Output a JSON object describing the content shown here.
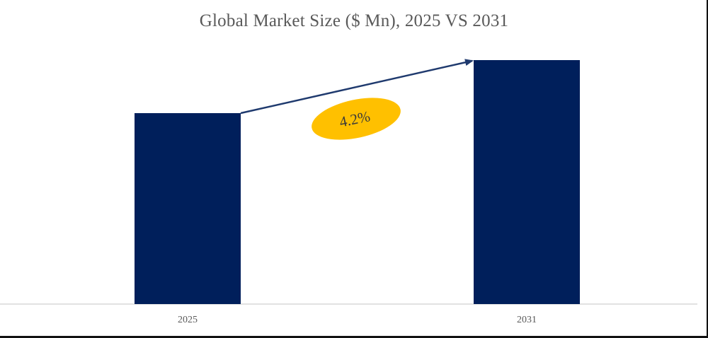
{
  "chart_data": {
    "type": "bar",
    "title": "Global Market Size ($ Mn), 2025 VS 2031",
    "xlabel": "",
    "ylabel": "",
    "categories": [
      "2025",
      "2031"
    ],
    "values": [
      72,
      92
    ],
    "ylim": [
      0,
      100
    ],
    "grid": false,
    "legend": "none",
    "annotation": {
      "text": "4.2%",
      "shape": "ellipse",
      "arrow": "from top of 2025 bar to top of 2031 bar"
    },
    "colors": {
      "bar": "#001F5B",
      "arrow": "#1F3A6E",
      "annotation_fill": "#FFC000",
      "axis": "#D9D9D9",
      "text": "#595959"
    }
  }
}
